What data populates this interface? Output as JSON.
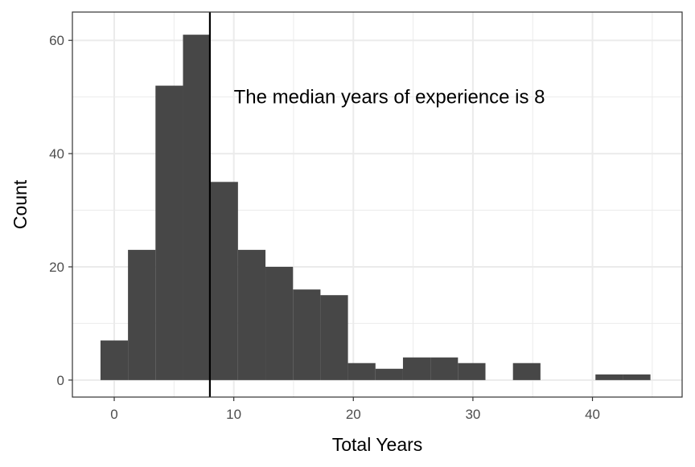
{
  "chart_data": {
    "type": "bar",
    "xlabel": "Total Years",
    "ylabel": "Count",
    "xlim": [
      -3.5,
      47.5
    ],
    "ylim": [
      -3,
      65
    ],
    "x_ticks": [
      0,
      10,
      20,
      30,
      40
    ],
    "y_ticks": [
      0,
      20,
      40,
      60
    ],
    "grid": true,
    "bin_width": 2.3,
    "bins": [
      {
        "x_start": -1.15,
        "x_end": 1.15,
        "count": 7
      },
      {
        "x_start": 1.15,
        "x_end": 3.45,
        "count": 23
      },
      {
        "x_start": 3.45,
        "x_end": 5.75,
        "count": 52
      },
      {
        "x_start": 5.75,
        "x_end": 8.05,
        "count": 61
      },
      {
        "x_start": 8.05,
        "x_end": 10.35,
        "count": 35
      },
      {
        "x_start": 10.35,
        "x_end": 12.65,
        "count": 23
      },
      {
        "x_start": 12.65,
        "x_end": 14.95,
        "count": 20
      },
      {
        "x_start": 14.95,
        "x_end": 17.25,
        "count": 16
      },
      {
        "x_start": 17.25,
        "x_end": 19.55,
        "count": 15
      },
      {
        "x_start": 19.55,
        "x_end": 21.85,
        "count": 3
      },
      {
        "x_start": 21.85,
        "x_end": 24.15,
        "count": 2
      },
      {
        "x_start": 24.15,
        "x_end": 26.45,
        "count": 4
      },
      {
        "x_start": 26.45,
        "x_end": 28.75,
        "count": 4
      },
      {
        "x_start": 28.75,
        "x_end": 31.05,
        "count": 3
      },
      {
        "x_start": 31.05,
        "x_end": 33.35,
        "count": 0
      },
      {
        "x_start": 33.35,
        "x_end": 35.65,
        "count": 3
      },
      {
        "x_start": 35.65,
        "x_end": 37.95,
        "count": 0
      },
      {
        "x_start": 37.95,
        "x_end": 40.25,
        "count": 0
      },
      {
        "x_start": 40.25,
        "x_end": 42.55,
        "count": 1
      },
      {
        "x_start": 42.55,
        "x_end": 44.85,
        "count": 1
      }
    ],
    "median_line": {
      "x": 8
    },
    "annotation": {
      "text": "The median years of experience is 8",
      "x": 10,
      "y": 50
    },
    "colors": {
      "bar": "#474747",
      "grid": "#ebebeb",
      "panel_border": "#333333",
      "median_line": "#000000"
    }
  }
}
